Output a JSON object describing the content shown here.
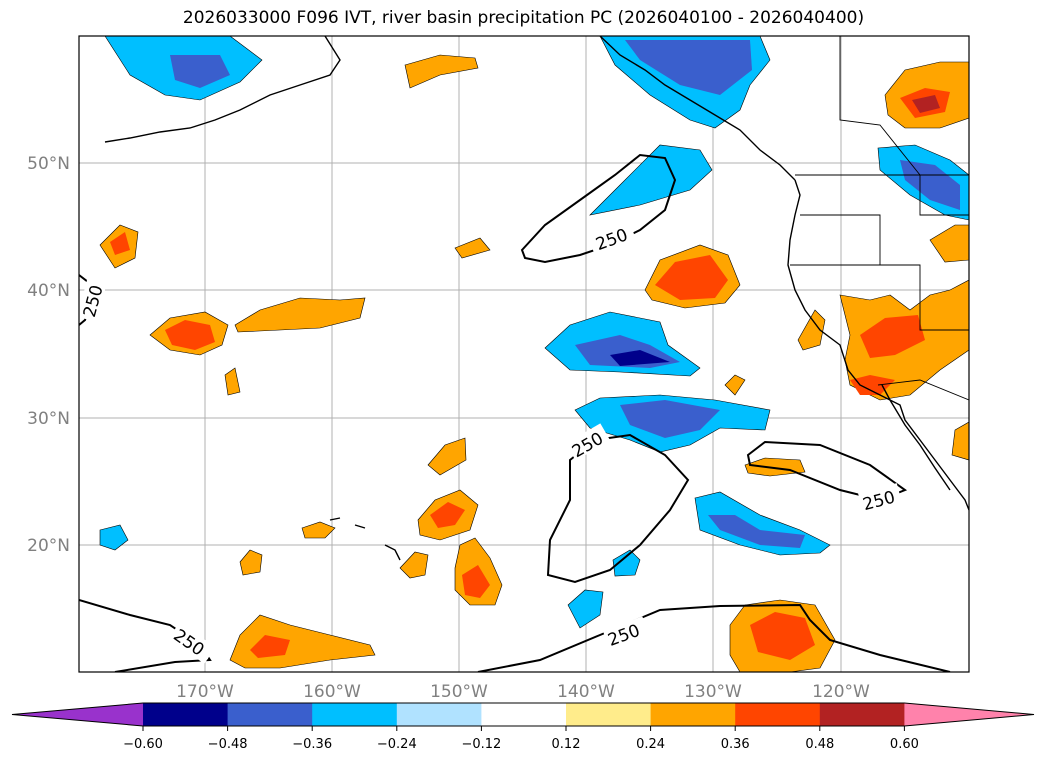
{
  "title": "2026033000 F096 IVT, river basin precipitation PC (2026040100 - 2026040400)",
  "lon_ticks": [
    "170°W",
    "160°W",
    "150°W",
    "140°W",
    "130°W",
    "120°W"
  ],
  "lat_ticks": [
    "50°N",
    "40°N",
    "30°N",
    "20°N"
  ],
  "contour_label": "250",
  "colorbar": {
    "ticks": [
      "−0.60",
      "−0.48",
      "−0.36",
      "−0.24",
      "−0.12",
      "0.12",
      "0.24",
      "0.36",
      "0.48",
      "0.60"
    ],
    "colors": [
      "#9932cc",
      "#00008b",
      "#3a5fcd",
      "#00bfff",
      "#b0e2ff",
      "#ffffff",
      "#ffec8b",
      "#ffa500",
      "#ff4500",
      "#b22222",
      "#ff82ab"
    ]
  },
  "colors": {
    "strong_neg": "#00008b",
    "mid_neg": "#3a5fcd",
    "neg": "#00bfff",
    "weak_neg": "#b0e2ff",
    "weak_pos": "#ffec8b",
    "pos": "#ffa500",
    "mid_pos": "#ff4500",
    "strong_pos": "#b22222"
  }
}
